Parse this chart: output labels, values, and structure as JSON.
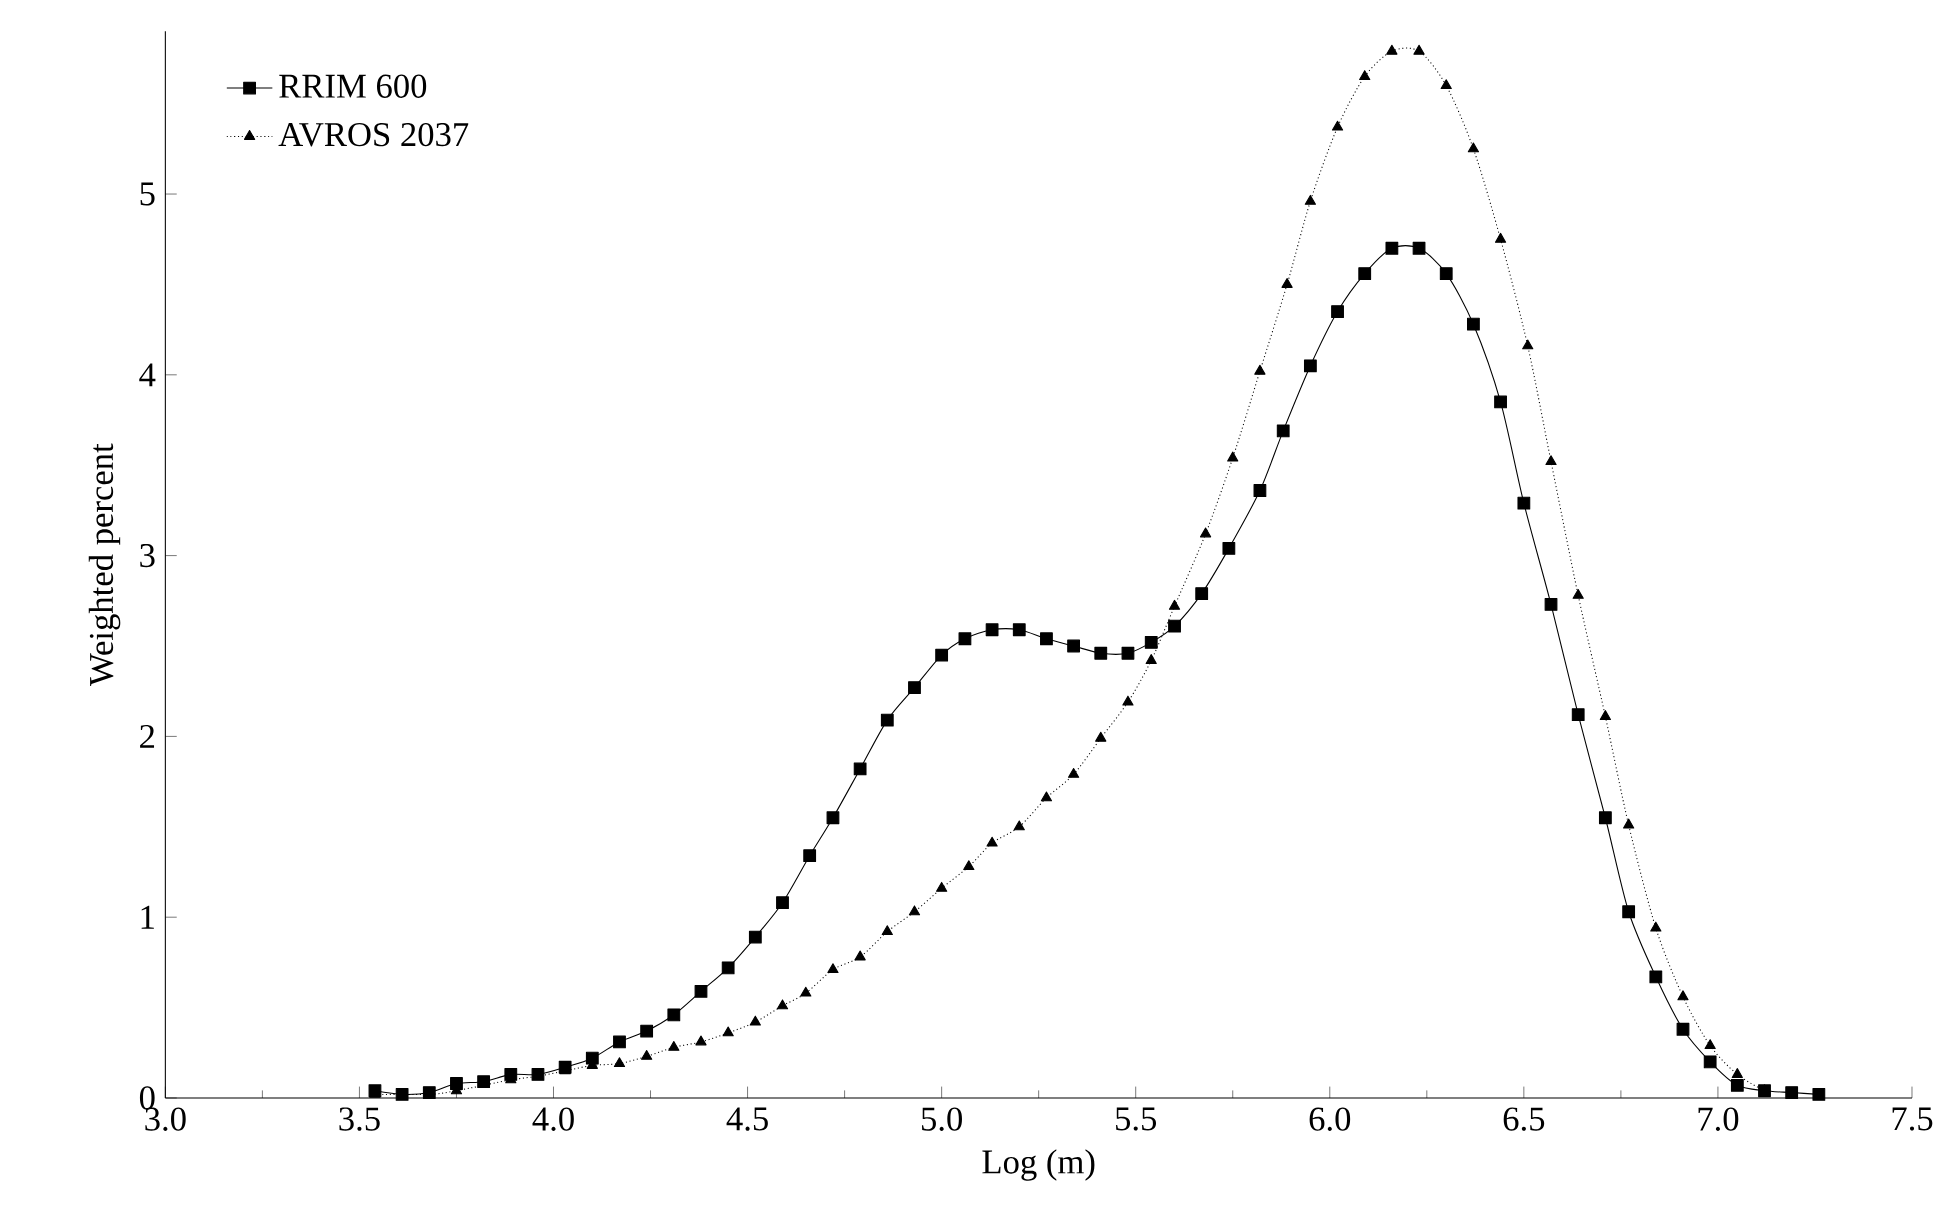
{
  "chart_data": {
    "type": "line",
    "xlabel": "Log (m)",
    "ylabel": "Weighted percent",
    "xlim": [
      3.0,
      7.5
    ],
    "xticks": [
      {
        "value": 3.0,
        "label": "3.0"
      },
      {
        "value": 3.5,
        "label": "3.5"
      },
      {
        "value": 4.0,
        "label": "4.0"
      },
      {
        "value": 4.5,
        "label": "4.5"
      },
      {
        "value": 5.0,
        "label": "5.0"
      },
      {
        "value": 5.5,
        "label": "5.5"
      },
      {
        "value": 6.0,
        "label": "6.0"
      },
      {
        "value": 6.5,
        "label": "6.5"
      },
      {
        "value": 7.0,
        "label": "7.0"
      },
      {
        "value": 7.5,
        "label": "7.5"
      }
    ],
    "ylim": [
      0,
      5.9
    ],
    "yticks": [
      0,
      1,
      2,
      3,
      4,
      5
    ],
    "grid": false,
    "legend": "top left",
    "series": [
      {
        "name": "RRIM 600",
        "color": "#000000",
        "marker": "square",
        "line_style": "solid",
        "x": [
          3.54,
          3.61,
          3.68,
          3.75,
          3.82,
          3.89,
          3.96,
          4.03,
          4.1,
          4.17,
          4.24,
          4.31,
          4.38,
          4.45,
          4.52,
          4.59,
          4.66,
          4.72,
          4.79,
          4.86,
          4.93,
          5.0,
          5.06,
          5.13,
          5.2,
          5.27,
          5.34,
          5.41,
          5.48,
          5.54,
          5.6,
          5.67,
          5.74,
          5.82,
          5.88,
          5.95,
          6.02,
          6.09,
          6.16,
          6.23,
          6.3,
          6.37,
          6.44,
          6.5,
          6.57,
          6.64,
          6.71,
          6.77,
          6.84,
          6.91,
          6.98,
          7.05,
          7.12,
          7.19,
          7.26
        ],
        "values": [
          0.04,
          0.02,
          0.03,
          0.08,
          0.09,
          0.13,
          0.13,
          0.17,
          0.22,
          0.31,
          0.37,
          0.46,
          0.59,
          0.72,
          0.89,
          1.08,
          1.34,
          1.55,
          1.82,
          2.09,
          2.27,
          2.45,
          2.54,
          2.59,
          2.59,
          2.54,
          2.5,
          2.46,
          2.46,
          2.52,
          2.61,
          2.79,
          3.04,
          3.36,
          3.69,
          4.05,
          4.35,
          4.56,
          4.7,
          4.7,
          4.56,
          4.28,
          3.85,
          3.29,
          2.73,
          2.12,
          1.55,
          1.03,
          0.67,
          0.38,
          0.2,
          0.07,
          0.04,
          0.03,
          0.02
        ]
      },
      {
        "name": "AVROS 2037",
        "color": "#000000",
        "marker": "triangle",
        "line_style": "dotted",
        "x": [
          3.54,
          3.68,
          3.75,
          3.89,
          3.96,
          4.03,
          4.1,
          4.17,
          4.24,
          4.31,
          4.38,
          4.45,
          4.52,
          4.59,
          4.65,
          4.72,
          4.79,
          4.86,
          4.93,
          5.0,
          5.07,
          5.13,
          5.2,
          5.27,
          5.34,
          5.41,
          5.48,
          5.54,
          5.6,
          5.68,
          5.75,
          5.82,
          5.89,
          5.95,
          6.02,
          6.09,
          6.16,
          6.23,
          6.3,
          6.37,
          6.44,
          6.51,
          6.57,
          6.64,
          6.71,
          6.77,
          6.84,
          6.91,
          6.98,
          7.05,
          7.12
        ],
        "values": [
          0.02,
          0.02,
          0.04,
          0.1,
          0.12,
          0.15,
          0.18,
          0.19,
          0.23,
          0.28,
          0.31,
          0.36,
          0.42,
          0.51,
          0.58,
          0.71,
          0.78,
          0.92,
          1.03,
          1.16,
          1.28,
          1.41,
          1.5,
          1.66,
          1.79,
          1.99,
          2.19,
          2.42,
          2.72,
          3.12,
          3.54,
          4.02,
          4.5,
          4.96,
          5.37,
          5.65,
          5.79,
          5.79,
          5.6,
          5.25,
          4.75,
          4.16,
          3.52,
          2.78,
          2.11,
          1.51,
          0.94,
          0.56,
          0.29,
          0.13,
          0.04
        ]
      }
    ]
  }
}
